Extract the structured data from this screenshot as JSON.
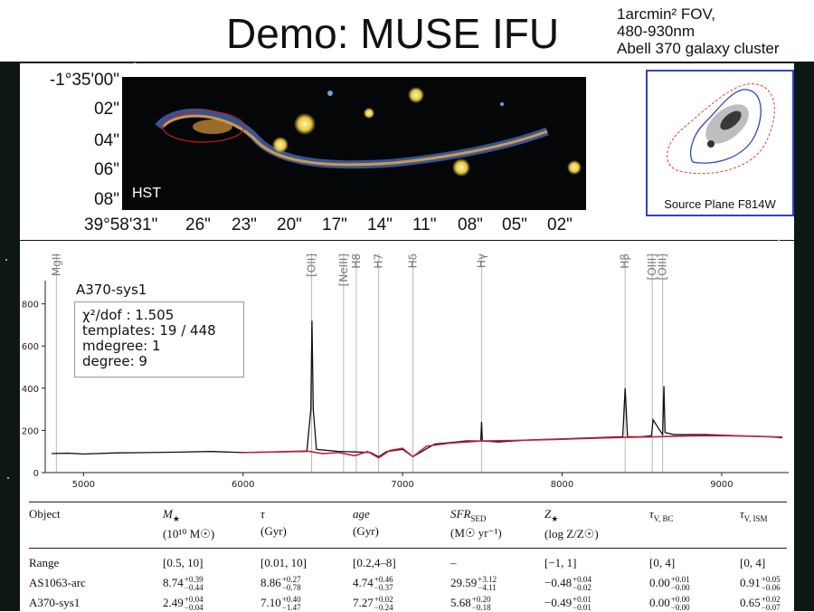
{
  "slide": {
    "title": "Demo: MUSE IFU",
    "notes": [
      "1arcmin² FOV,",
      "480-930nm",
      "Abell 370 galaxy cluster"
    ]
  },
  "hst_panel": {
    "badge": "HST",
    "dec_ticks": [
      "-1°35'00\"",
      "02\"",
      "04\"",
      "06\"",
      "08\""
    ],
    "ra_ticks": [
      "39°58'31\"",
      "26\"",
      "23\"",
      "20\"",
      "17\"",
      "14\"",
      "11\"",
      "08\"",
      "05\"",
      "02\""
    ],
    "source_plane_label": "Source Plane F814W"
  },
  "spectrum_panel": {
    "system_name": "A370-sys1",
    "fit_stats": [
      "χ²/dof : 1.505",
      "templates: 19  /  448",
      "mdegree: 1",
      "degree: 9"
    ],
    "line_labels": [
      "MgII",
      "[OII]",
      "[NeIII]",
      "H8",
      "H7",
      "Hδ",
      "Hγ",
      "Hβ",
      "[OIII]",
      "[OIII]"
    ],
    "colors": {
      "data": "#111111",
      "model": "#c0203a",
      "line_marker": "#b8b8b8"
    }
  },
  "chart_data": {
    "type": "line",
    "title": "",
    "xlabel": "",
    "ylabel": "",
    "xlim": [
      4760,
      9420
    ],
    "ylim": [
      0,
      910
    ],
    "x_ticks": [
      5000,
      6000,
      7000,
      8000,
      9000
    ],
    "y_ticks": [
      0,
      200,
      400,
      600,
      800
    ],
    "line_markers": [
      4830,
      6430,
      6630,
      6710,
      6850,
      7065,
      7495,
      8395,
      8565,
      8630
    ],
    "series": [
      {
        "name": "",
        "x": [
          4800,
          4900,
          5000,
          5200,
          5400,
          5600,
          5800,
          6000,
          6200,
          6400,
          6425,
          6432,
          6440,
          6460,
          6600,
          6700,
          6800,
          6850,
          6900,
          7000,
          7065,
          7200,
          7400,
          7490,
          7495,
          7500,
          7600,
          7800,
          8000,
          8200,
          8380,
          8395,
          8410,
          8500,
          8560,
          8570,
          8630,
          8638,
          8645,
          8700,
          8900,
          9100,
          9300,
          9380
        ],
        "y": [
          90,
          92,
          88,
          93,
          95,
          97,
          100,
          95,
          98,
          100,
          300,
          720,
          300,
          110,
          100,
          98,
          95,
          75,
          100,
          110,
          75,
          135,
          150,
          150,
          240,
          150,
          145,
          155,
          160,
          165,
          170,
          400,
          170,
          170,
          175,
          250,
          180,
          410,
          190,
          180,
          180,
          175,
          170,
          165
        ]
      },
      {
        "name": "",
        "x": [
          6000,
          6200,
          6400,
          6500,
          6600,
          6700,
          6780,
          6850,
          6920,
          7000,
          7065,
          7150,
          7300,
          7500,
          7700,
          8000,
          8200,
          8400,
          8600,
          8800,
          9000,
          9200,
          9380
        ],
        "y": [
          95,
          98,
          102,
          90,
          95,
          80,
          100,
          70,
          105,
          115,
          75,
          125,
          140,
          150,
          152,
          158,
          163,
          167,
          170,
          174,
          175,
          172,
          168
        ]
      }
    ]
  },
  "table": {
    "headers": [
      {
        "name": "Object",
        "unit": ""
      },
      {
        "name": "M",
        "unit": "(10¹⁰ M☉)"
      },
      {
        "name": "τ",
        "unit": "(Gyr)"
      },
      {
        "name": "age",
        "unit": "(Gyr)"
      },
      {
        "name": "SFR",
        "unit": "(M☉ yr⁻¹)"
      },
      {
        "name": "Z",
        "unit": "(log Z/Z☉)"
      },
      {
        "name": "τ",
        "unit": ""
      },
      {
        "name": "τ",
        "unit": ""
      }
    ],
    "header_subs": [
      "",
      "★",
      "",
      "",
      "SED",
      "★",
      "V, BC",
      "V, ISM"
    ],
    "rows": [
      {
        "object": "Range",
        "cells": [
          {
            "v": "[0.5, 10]",
            "p": "",
            "m": ""
          },
          {
            "v": "[0.01, 10]",
            "p": "",
            "m": ""
          },
          {
            "v": "[0.2,4–8]",
            "p": "",
            "m": ""
          },
          {
            "v": "–",
            "p": "",
            "m": ""
          },
          {
            "v": "[−1, 1]",
            "p": "",
            "m": ""
          },
          {
            "v": "[0, 4]",
            "p": "",
            "m": ""
          },
          {
            "v": "[0, 4]",
            "p": "",
            "m": ""
          }
        ]
      },
      {
        "object": "AS1063-arc",
        "cells": [
          {
            "v": "8.74",
            "p": "+0.39",
            "m": "−0.44"
          },
          {
            "v": "8.86",
            "p": "+0.27",
            "m": "−0.78"
          },
          {
            "v": "4.74",
            "p": "+0.46",
            "m": "−0.37"
          },
          {
            "v": "29.59",
            "p": "+3.12",
            "m": "−4.11"
          },
          {
            "v": "−0.48",
            "p": "+0.04",
            "m": "−0.02"
          },
          {
            "v": "0.00",
            "p": "+0.01",
            "m": "−0.00"
          },
          {
            "v": "0.91",
            "p": "+0.05",
            "m": "−0.06"
          }
        ]
      },
      {
        "object": "A370-sys1",
        "cells": [
          {
            "v": "2.49",
            "p": "+0.04",
            "m": "−0.04"
          },
          {
            "v": "7.10",
            "p": "+0.40",
            "m": "−1.47"
          },
          {
            "v": "7.27",
            "p": "+0.02",
            "m": "−0.24"
          },
          {
            "v": "5.68",
            "p": "+0.20",
            "m": "−0.18"
          },
          {
            "v": "−0.49",
            "p": "+0.01",
            "m": "−0.01"
          },
          {
            "v": "0.00",
            "p": "+0.00",
            "m": "−0.00"
          },
          {
            "v": "0.65",
            "p": "+0.02",
            "m": "−0.07"
          }
        ]
      }
    ]
  }
}
